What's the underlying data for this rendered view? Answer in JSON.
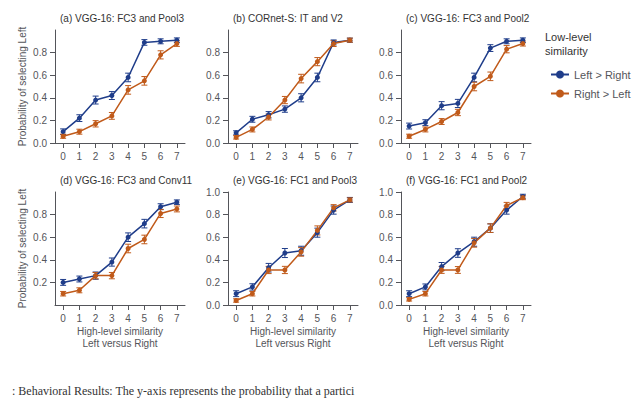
{
  "chart_data": [
    {
      "type": "line",
      "title": "(a) VGG-16: FC3 and Pool3",
      "ylabel": "Probability of selecting Left",
      "x": [
        0,
        1,
        2,
        3,
        4,
        5,
        6,
        7
      ],
      "marker": "circle",
      "grid": false,
      "xlim": [
        -0.5,
        7.5
      ],
      "xticks": [
        0,
        1,
        2,
        3,
        4,
        5,
        6,
        7
      ],
      "ylim": [
        0.0,
        1.0
      ],
      "yticks": [
        {
          "value": 0.0,
          "label": "0.0"
        },
        0.2,
        0.4,
        0.6,
        0.8
      ],
      "series": [
        {
          "name": "Left > Right",
          "color": "#1f3d8a",
          "values": [
            0.1,
            0.22,
            0.38,
            0.42,
            0.58,
            0.89,
            0.9,
            0.91
          ],
          "errors": [
            0.025,
            0.03,
            0.035,
            0.035,
            0.038,
            0.025,
            0.022,
            0.02
          ]
        },
        {
          "name": "Right > Left",
          "color": "#c05a1a",
          "values": [
            0.06,
            0.1,
            0.17,
            0.24,
            0.47,
            0.55,
            0.78,
            0.88
          ],
          "errors": [
            0.018,
            0.022,
            0.028,
            0.03,
            0.038,
            0.038,
            0.036,
            0.025
          ]
        }
      ]
    },
    {
      "type": "line",
      "title": "(b) CORnet-S: IT and V2",
      "x": [
        0,
        1,
        2,
        3,
        4,
        5,
        6,
        7
      ],
      "marker": "circle",
      "grid": false,
      "xlim": [
        -0.5,
        7.5
      ],
      "xticks": [
        0,
        1,
        2,
        3,
        4,
        5,
        6,
        7
      ],
      "ylim": [
        0.0,
        1.0
      ],
      "yticks": [
        {
          "value": 0.0,
          "label": "0.0"
        },
        0.2,
        0.4,
        0.6,
        0.8
      ],
      "series": [
        {
          "name": "Left > Right",
          "color": "#1f3d8a",
          "values": [
            0.09,
            0.21,
            0.25,
            0.3,
            0.4,
            0.58,
            0.89,
            0.91
          ],
          "errors": [
            0.018,
            0.026,
            0.028,
            0.028,
            0.036,
            0.038,
            0.022,
            0.018
          ]
        },
        {
          "name": "Right > Left",
          "color": "#c05a1a",
          "values": [
            0.05,
            0.12,
            0.23,
            0.38,
            0.57,
            0.72,
            0.88,
            0.91
          ],
          "errors": [
            0.015,
            0.022,
            0.026,
            0.032,
            0.038,
            0.036,
            0.026,
            0.018
          ]
        }
      ]
    },
    {
      "type": "line",
      "title": "(c) VGG-16: FC3 and Pool2",
      "x": [
        0,
        1,
        2,
        3,
        4,
        5,
        6,
        7
      ],
      "marker": "circle",
      "grid": false,
      "xlim": [
        -0.5,
        7.5
      ],
      "xticks": [
        0,
        1,
        2,
        3,
        4,
        5,
        6,
        7
      ],
      "ylim": [
        0.0,
        1.0
      ],
      "yticks": [
        {
          "value": 0.0,
          "label": "0.0"
        },
        0.2,
        0.4,
        0.6,
        0.8
      ],
      "series": [
        {
          "name": "Left > Right",
          "color": "#1f3d8a",
          "values": [
            0.15,
            0.18,
            0.33,
            0.35,
            0.58,
            0.84,
            0.9,
            0.91
          ],
          "errors": [
            0.026,
            0.026,
            0.036,
            0.036,
            0.038,
            0.03,
            0.022,
            0.02
          ]
        },
        {
          "name": "Right > Left",
          "color": "#c05a1a",
          "values": [
            0.06,
            0.12,
            0.19,
            0.27,
            0.5,
            0.59,
            0.83,
            0.88
          ],
          "errors": [
            0.018,
            0.022,
            0.026,
            0.028,
            0.038,
            0.038,
            0.032,
            0.022
          ]
        }
      ]
    },
    {
      "type": "line",
      "title": "(d) VGG-16: FC3 and Conv11",
      "ylabel": "Probability of selecting Left",
      "xlabel": "High-level similarity\nLeft versus Right",
      "x": [
        0,
        1,
        2,
        3,
        4,
        5,
        6,
        7
      ],
      "marker": "circle",
      "grid": false,
      "xlim": [
        -0.5,
        7.5
      ],
      "xticks": [
        0,
        1,
        2,
        3,
        4,
        5,
        6,
        7
      ],
      "ylim": [
        0.0,
        1.0
      ],
      "yticks": [
        0.2,
        0.4,
        0.6,
        0.8
      ],
      "series": [
        {
          "name": "Left > Right",
          "color": "#1f3d8a",
          "values": [
            0.2,
            0.23,
            0.26,
            0.38,
            0.6,
            0.72,
            0.87,
            0.91
          ],
          "errors": [
            0.026,
            0.026,
            0.032,
            0.036,
            0.038,
            0.038,
            0.026,
            0.02
          ]
        },
        {
          "name": "Right > Left",
          "color": "#c05a1a",
          "values": [
            0.1,
            0.13,
            0.26,
            0.26,
            0.5,
            0.58,
            0.81,
            0.85
          ],
          "errors": [
            0.02,
            0.022,
            0.028,
            0.028,
            0.038,
            0.038,
            0.036,
            0.026
          ]
        }
      ]
    },
    {
      "type": "line",
      "title": "(e) VGG-16: FC1 and Pool3",
      "xlabel": "High-level similarity\nLeft versus Right",
      "x": [
        0,
        1,
        2,
        3,
        4,
        5,
        6,
        7
      ],
      "marker": "circle",
      "grid": false,
      "xlim": [
        -0.5,
        7.5
      ],
      "xticks": [
        0,
        1,
        2,
        3,
        4,
        5,
        6,
        7
      ],
      "ylim": [
        0.0,
        1.0
      ],
      "yticks": [
        {
          "value": 0.0,
          "label": "0.0"
        },
        0.2,
        0.4,
        0.6,
        0.8,
        {
          "value": 1.0,
          "label": "1.0"
        }
      ],
      "series": [
        {
          "name": "Left > Right",
          "color": "#1f3d8a",
          "values": [
            0.1,
            0.16,
            0.33,
            0.46,
            0.48,
            0.64,
            0.84,
            0.93
          ],
          "errors": [
            0.026,
            0.028,
            0.038,
            0.04,
            0.04,
            0.04,
            0.036,
            0.022
          ]
        },
        {
          "name": "Right > Left",
          "color": "#c05a1a",
          "values": [
            0.04,
            0.1,
            0.31,
            0.31,
            0.47,
            0.66,
            0.86,
            0.93
          ],
          "errors": [
            0.015,
            0.02,
            0.032,
            0.032,
            0.038,
            0.04,
            0.028,
            0.018
          ]
        }
      ]
    },
    {
      "type": "line",
      "title": "(f) VGG-16: FC1 and Pool2",
      "xlabel": "High-level similarity\nLeft versus Right",
      "x": [
        0,
        1,
        2,
        3,
        4,
        5,
        6,
        7
      ],
      "marker": "circle",
      "grid": false,
      "xlim": [
        -0.5,
        7.5
      ],
      "xticks": [
        0,
        1,
        2,
        3,
        4,
        5,
        6,
        7
      ],
      "ylim": [
        0.0,
        1.0
      ],
      "yticks": [
        {
          "value": 0.0,
          "label": "0.0"
        },
        0.2,
        0.4,
        0.6,
        0.8,
        {
          "value": 1.0,
          "label": "1.0"
        }
      ],
      "series": [
        {
          "name": "Left > Right",
          "color": "#1f3d8a",
          "values": [
            0.1,
            0.16,
            0.34,
            0.46,
            0.56,
            0.68,
            0.84,
            0.96
          ],
          "errors": [
            0.026,
            0.026,
            0.036,
            0.038,
            0.04,
            0.038,
            0.036,
            0.02
          ]
        },
        {
          "name": "Right > Left",
          "color": "#c05a1a",
          "values": [
            0.05,
            0.1,
            0.31,
            0.31,
            0.55,
            0.68,
            0.88,
            0.95
          ],
          "errors": [
            0.015,
            0.02,
            0.03,
            0.03,
            0.038,
            0.038,
            0.028,
            0.018
          ]
        }
      ]
    }
  ],
  "legend": "right",
  "legend_title": "Low-level\nsimilarity",
  "annotations": [
    {
      "text": ": Behavioral Results: The y-axis represents the probability that a partici"
    }
  ]
}
